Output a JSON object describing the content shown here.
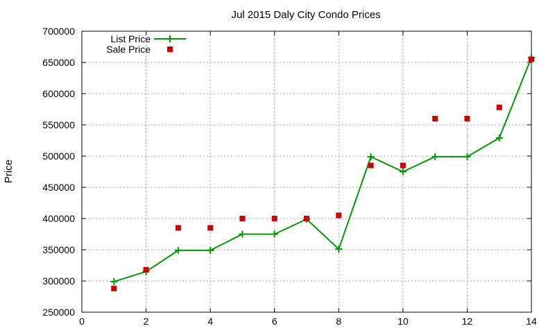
{
  "chart_data": {
    "type": "line",
    "title": "Jul 2015 Daly City Condo Prices",
    "xlabel": "",
    "ylabel": "Price",
    "xlim": [
      0,
      14
    ],
    "ylim": [
      250000,
      700000
    ],
    "xticks": [
      0,
      2,
      4,
      6,
      8,
      10,
      12,
      14
    ],
    "yticks": [
      250000,
      300000,
      350000,
      400000,
      450000,
      500000,
      550000,
      600000,
      650000,
      700000
    ],
    "xtick_labels": [
      "0",
      "2",
      "4",
      "6",
      "8",
      "10",
      "12",
      "14"
    ],
    "ytick_labels": [
      "250000",
      "300000",
      "350000",
      "400000",
      "450000",
      "500000",
      "550000",
      "600000",
      "650000",
      "700000"
    ],
    "grid": true,
    "legend_position": "top-left",
    "series": [
      {
        "name": "List Price",
        "style": "line-points",
        "color": "#009900",
        "x": [
          1,
          2,
          3,
          4,
          5,
          6,
          7,
          8,
          9,
          10,
          11,
          12,
          13,
          14
        ],
        "y": [
          299000,
          315000,
          349000,
          349000,
          375000,
          375000,
          399000,
          351000,
          499000,
          475000,
          499000,
          499000,
          529000,
          658000
        ]
      },
      {
        "name": "Sale Price",
        "style": "points",
        "color": "#cc0000",
        "x": [
          1,
          2,
          3,
          4,
          5,
          6,
          7,
          8,
          9,
          10,
          11,
          12,
          13,
          14
        ],
        "y": [
          288000,
          318000,
          385000,
          385000,
          400000,
          400000,
          400000,
          405000,
          485000,
          485000,
          560000,
          560000,
          578000,
          655000
        ]
      }
    ]
  }
}
